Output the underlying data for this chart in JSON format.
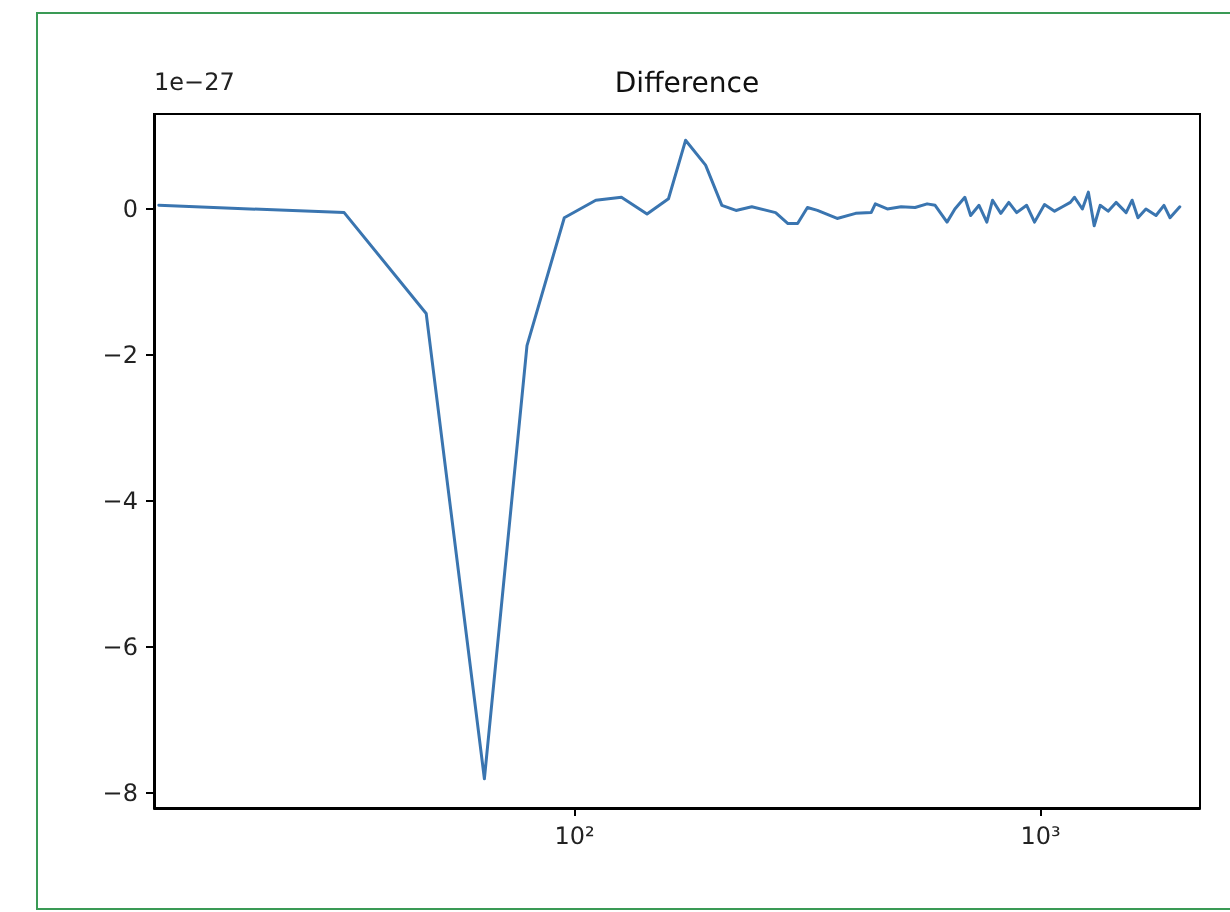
{
  "chart_data": {
    "type": "line",
    "title": "Difference",
    "annotations": [
      "1e−27"
    ],
    "x": [
      12.8,
      32,
      48,
      64,
      79,
      95,
      111,
      126,
      143,
      159,
      173,
      191,
      207,
      222,
      240,
      270,
      287,
      301,
      316,
      332,
      366,
      401,
      433,
      442,
      469,
      502,
      538,
      571,
      594,
      630,
      655,
      688,
      708,
      738,
      767,
      789,
      822,
      855,
      889,
      934,
      971,
      1020,
      1072,
      1115,
      1159,
      1183,
      1230,
      1267,
      1304,
      1343,
      1397,
      1453,
      1527,
      1573,
      1619,
      1684,
      1770,
      1841,
      1897,
      1991
    ],
    "series": [
      {
        "color": "#3a75b0",
        "values": [
          0.05,
          -0.05,
          -1.43,
          -7.8,
          -1.87,
          -0.12,
          0.12,
          0.16,
          -0.07,
          0.14,
          0.94,
          0.6,
          0.05,
          -0.02,
          0.03,
          -0.05,
          -0.2,
          -0.2,
          0.02,
          -0.02,
          -0.13,
          -0.06,
          -0.05,
          0.07,
          0,
          0.03,
          0.02,
          0.07,
          0.05,
          -0.18,
          0,
          0.16,
          -0.09,
          0.05,
          -0.18,
          0.12,
          -0.06,
          0.09,
          -0.05,
          0.05,
          -0.18,
          0.06,
          -0.03,
          0.03,
          0.09,
          0.16,
          0,
          0.23,
          -0.23,
          0.05,
          -0.03,
          0.09,
          -0.05,
          0.12,
          -0.12,
          0,
          -0.09,
          0.05,
          -0.12,
          0.03
        ]
      }
    ],
    "log": "x",
    "xlim": [
      12.5,
      2200
    ],
    "xticks": [
      {
        "value": 100,
        "label": "10²"
      },
      {
        "value": 1000,
        "label": "10³"
      }
    ],
    "ylim": [
      -8.2,
      1.3
    ],
    "yticks": [
      0,
      -2,
      -4,
      -6,
      -8
    ],
    "grid": false,
    "marker": "none",
    "line_style": "solid"
  }
}
